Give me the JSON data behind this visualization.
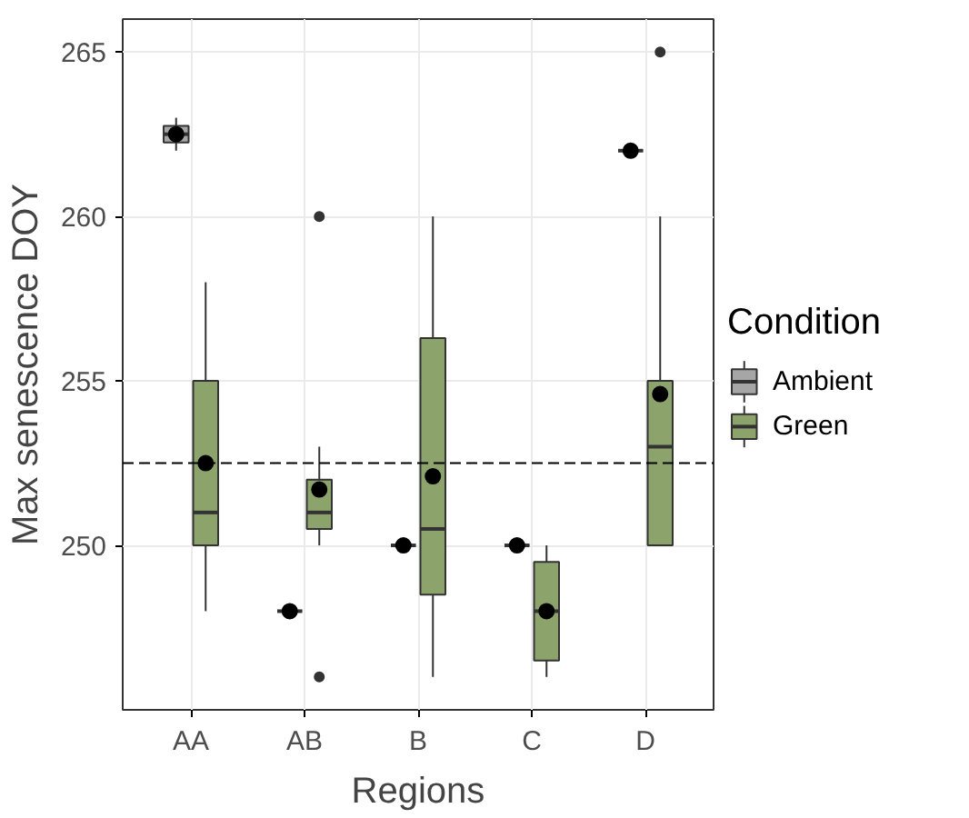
{
  "chart_data": {
    "type": "box",
    "xlabel": "Regions",
    "ylabel": "Max senescence DOY",
    "legend_title": "Condition",
    "categories": [
      "AA",
      "AB",
      "B",
      "C",
      "D"
    ],
    "ylim": [
      245,
      266
    ],
    "yticks": [
      250,
      255,
      260,
      265
    ],
    "grid": true,
    "legend": "right",
    "series": [
      {
        "name": "Ambient",
        "color": "#a6a6a6",
        "boxes": [
          {
            "low": 262,
            "q1": 262.25,
            "median": 262.5,
            "q3": 262.75,
            "high": 263,
            "mean": 262.5
          },
          {
            "low": 248,
            "q1": 248,
            "median": 248,
            "q3": 248,
            "high": 248,
            "mean": 248
          },
          {
            "low": 250,
            "q1": 250,
            "median": 250,
            "q3": 250,
            "high": 250,
            "mean": 250
          },
          {
            "low": 250,
            "q1": 250,
            "median": 250,
            "q3": 250,
            "high": 250,
            "mean": 250
          },
          {
            "low": 262,
            "q1": 262,
            "median": 262,
            "q3": 262,
            "high": 262,
            "mean": 262
          }
        ]
      },
      {
        "name": "Green",
        "color": "#8da36c",
        "boxes": [
          {
            "low": 248,
            "q1": 250,
            "median": 251,
            "q3": 255,
            "high": 258,
            "mean": 252.5
          },
          {
            "low": 250,
            "q1": 250.5,
            "median": 251,
            "q3": 252,
            "high": 253,
            "mean": 251.7,
            "outliers": [
              260,
              246
            ]
          },
          {
            "low": 246,
            "q1": 248.5,
            "median": 250.5,
            "q3": 256.3,
            "high": 260,
            "mean": 252.1
          },
          {
            "low": 246,
            "q1": 246.5,
            "median": 248,
            "q3": 249.5,
            "high": 250,
            "mean": 248
          },
          {
            "low": 250,
            "q1": 250,
            "median": 253,
            "q3": 255,
            "high": 260,
            "mean": 254.6,
            "outliers": [
              265
            ]
          }
        ]
      }
    ],
    "ref_lines": [
      {
        "axis": "y",
        "value": 252.5,
        "line_style": "dashed"
      }
    ]
  }
}
